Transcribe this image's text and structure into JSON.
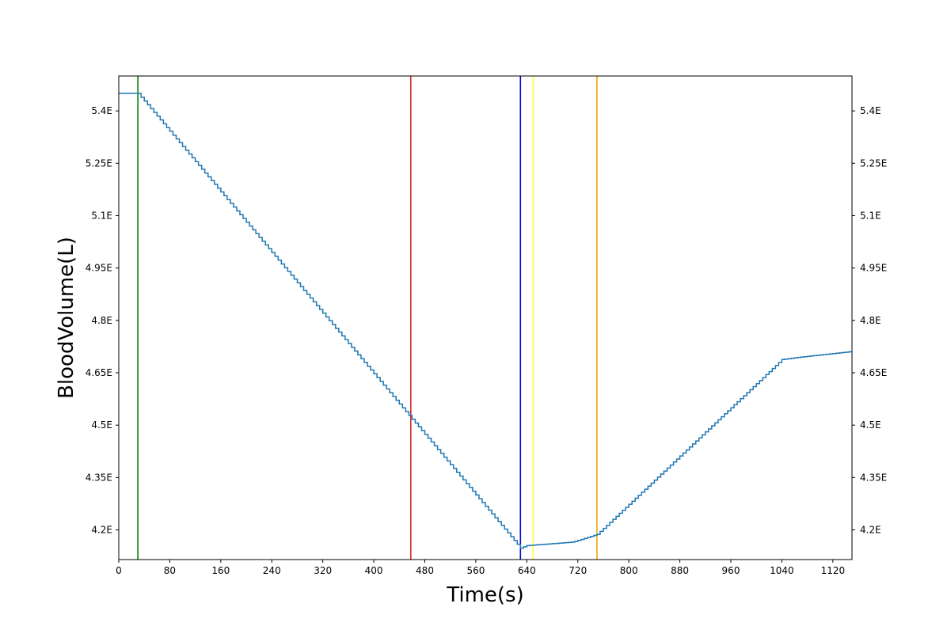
{
  "chart_data": {
    "type": "line",
    "title": "",
    "xlabel": "Time(s)",
    "ylabel": "BloodVolume(L)",
    "xlim": [
      0,
      1150
    ],
    "ylim": [
      4.115,
      5.5
    ],
    "x_ticks": [
      0,
      80,
      160,
      240,
      320,
      400,
      480,
      560,
      640,
      720,
      800,
      880,
      960,
      1040,
      1120
    ],
    "y_ticks": [
      {
        "value": 4.2,
        "label": "4.2E"
      },
      {
        "value": 4.35,
        "label": "4.35E"
      },
      {
        "value": 4.5,
        "label": "4.5E"
      },
      {
        "value": 4.65,
        "label": "4.65E"
      },
      {
        "value": 4.8,
        "label": "4.8E"
      },
      {
        "value": 4.95,
        "label": "4.95E"
      },
      {
        "value": 5.1,
        "label": "5.1E"
      },
      {
        "value": 5.25,
        "label": "5.25E"
      },
      {
        "value": 5.4,
        "label": "5.4E"
      }
    ],
    "grid": false,
    "series": [
      {
        "color": "#1f77b4",
        "step": true,
        "x": [
          0,
          30,
          630,
          640,
          712,
          750,
          1040,
          1070,
          1145,
          1150
        ],
        "y": [
          5.45,
          5.45,
          4.148,
          4.155,
          4.165,
          4.187,
          4.688,
          4.695,
          4.71,
          4.71
        ]
      }
    ],
    "vertical_lines": [
      {
        "x": 30,
        "color": "#008000"
      },
      {
        "x": 458,
        "color": "#d62728"
      },
      {
        "x": 630,
        "color": "#0000cc"
      },
      {
        "x": 650,
        "color": "#ffff33"
      },
      {
        "x": 750,
        "color": "#f0a30a"
      }
    ]
  }
}
